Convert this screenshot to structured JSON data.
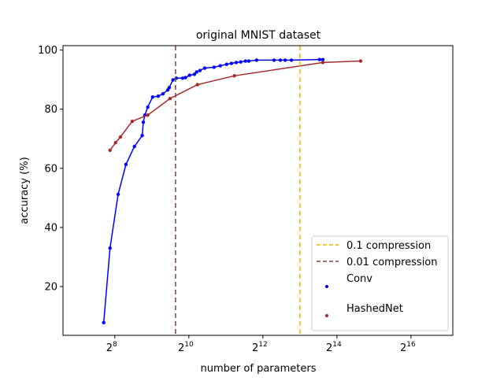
{
  "chart_data": {
    "type": "line",
    "title": "original MNIST dataset",
    "xlabel": "number of parameters",
    "ylabel": "accuracy (%)",
    "x_scale": "log2",
    "xlim_log2": [
      6.6,
      17.13
    ],
    "ylim": [
      3.5,
      101.5
    ],
    "xticks": [
      {
        "log2": 8,
        "base": "2",
        "exp": "8"
      },
      {
        "log2": 10,
        "base": "2",
        "exp": "10"
      },
      {
        "log2": 12,
        "base": "2",
        "exp": "12"
      },
      {
        "log2": 14,
        "base": "2",
        "exp": "14"
      },
      {
        "log2": 16,
        "base": "2",
        "exp": "16"
      }
    ],
    "yticks": [
      20,
      40,
      60,
      80,
      100
    ],
    "ytick_labels": [
      "20",
      "40",
      "60",
      "80",
      "100"
    ],
    "vlines": [
      {
        "name": "0.1 compression",
        "log2_x": 13.0,
        "color": "#e6b800"
      },
      {
        "name": "0.01 compression",
        "log2_x": 9.64,
        "color": "#7a4a3a"
      }
    ],
    "series": [
      {
        "name": "Conv",
        "color": "#0000ff",
        "log2_x": [
          7.7,
          7.87,
          8.09,
          8.3,
          8.53,
          8.74,
          8.77,
          8.81,
          8.89,
          9.02,
          9.17,
          9.3,
          9.43,
          9.47,
          9.57,
          9.66,
          9.83,
          9.91,
          10.02,
          10.15,
          10.21,
          10.3,
          10.43,
          10.68,
          10.85,
          11.02,
          11.15,
          11.28,
          11.4,
          11.53,
          11.62,
          11.83,
          12.3,
          12.47,
          12.6,
          12.77,
          13.53,
          13.62
        ],
        "y": [
          7.8,
          33,
          51.2,
          61.3,
          67.4,
          71.1,
          75.6,
          78,
          80.7,
          84.1,
          84.4,
          85.2,
          86.5,
          87.3,
          89.9,
          90.5,
          90.5,
          90.7,
          91.5,
          91.8,
          92.6,
          93.1,
          93.9,
          94.2,
          94.7,
          95.2,
          95.5,
          95.8,
          96.0,
          96.3,
          96.3,
          96.6,
          96.6,
          96.6,
          96.6,
          96.6,
          96.8,
          96.8
        ]
      },
      {
        "name": "HashedNet",
        "color": "#a52a2a",
        "log2_x": [
          7.87,
          8.02,
          8.15,
          8.47,
          8.89,
          9.49,
          10.23,
          11.23,
          13.62,
          14.64
        ],
        "y": [
          66.1,
          68.7,
          70.6,
          75.9,
          78.0,
          83.6,
          88.3,
          91.3,
          95.8,
          96.3
        ]
      }
    ],
    "legend": {
      "placement": "lower-right",
      "entries": [
        "0.1 compression",
        "0.01 compression",
        "Conv",
        "HashedNet"
      ]
    },
    "grid": false
  }
}
